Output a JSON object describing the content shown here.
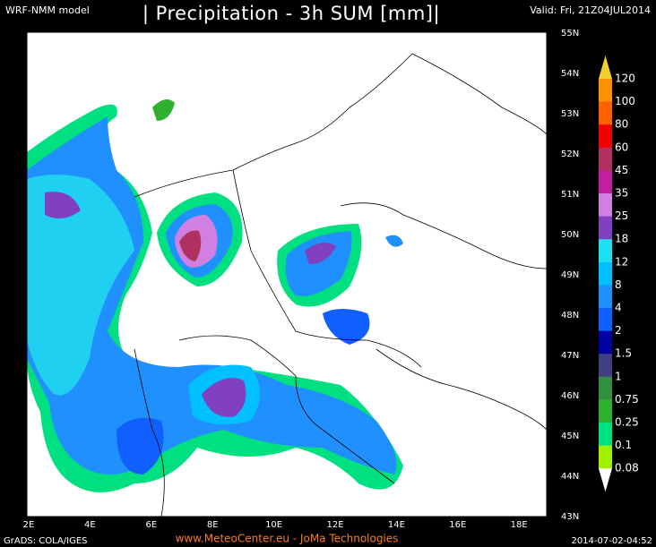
{
  "header": {
    "model": "WRF-NMM model",
    "title": "| Precipitation - 3h SUM [mm]|",
    "valid": "Valid: Fri, 21Z04JUL2014"
  },
  "map": {
    "latitude_labels": [
      "55N",
      "54N",
      "53N",
      "52N",
      "51N",
      "50N",
      "49N",
      "48N",
      "47N",
      "46N",
      "45N",
      "44N",
      "43N"
    ],
    "longitude_labels": [
      "2E",
      "4E",
      "6E",
      "8E",
      "10E",
      "12E",
      "14E",
      "16E",
      "18E"
    ]
  },
  "legend": {
    "labels": [
      "120",
      "100",
      "80",
      "60",
      "45",
      "35",
      "25",
      "18",
      "12",
      "8",
      "4",
      "2",
      "1.5",
      "1",
      "0.75",
      "0.25",
      "0.1",
      "0.08"
    ]
  },
  "footer": {
    "software": "GrADS: COLA/IGES",
    "credit": "www.MeteoCenter.eu  -  JoMa Technologies",
    "timestamp": "2014-07-02-04:52"
  }
}
